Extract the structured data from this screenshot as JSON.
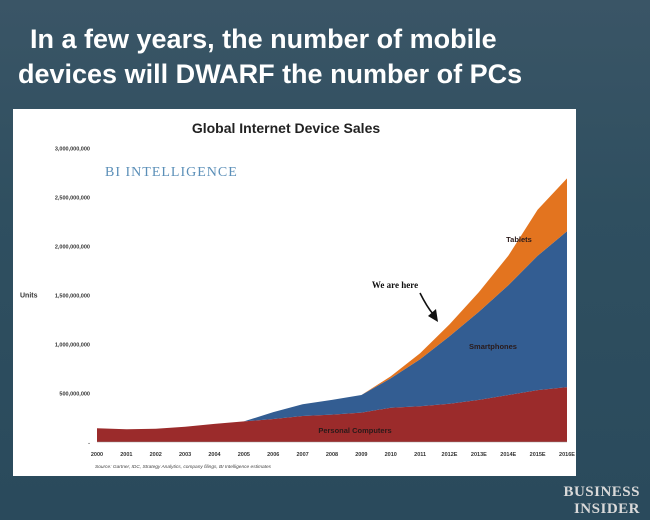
{
  "slide": {
    "headline_line1": "In a few years, the number of mobile",
    "headline_line2": "devices will DWARF the number of PCs",
    "brand_line1": "BUSINESS",
    "brand_line2": "INSIDER"
  },
  "chart_data": {
    "type": "area",
    "stacked": true,
    "title": "Global Internet Device Sales",
    "watermark": "BI INTELLIGENCE",
    "ylabel": "Units",
    "xlabel": "",
    "source": "Source: Gartner, IDC, Strategy Analytics, company filings, BI Intelligence estimates",
    "annotation": "We are here",
    "ylim": [
      0,
      3000000000
    ],
    "y_ticks": [
      0,
      500000000,
      1000000000,
      1500000000,
      2000000000,
      2500000000,
      3000000000
    ],
    "y_tick_labels": [
      "-",
      "500,000,000",
      "1,000,000,000",
      "1,500,000,000",
      "2,000,000,000",
      "2,500,000,000",
      "3,000,000,000"
    ],
    "categories": [
      "2000",
      "2001",
      "2002",
      "2003",
      "2004",
      "2005",
      "2006",
      "2007",
      "2008",
      "2009",
      "2010",
      "2011",
      "2012E",
      "2013E",
      "2014E",
      "2015E",
      "2016E"
    ],
    "series": [
      {
        "name": "Personal Computers",
        "color": "#9b2b2b",
        "values": [
          140000000,
          130000000,
          135000000,
          155000000,
          185000000,
          210000000,
          235000000,
          265000000,
          280000000,
          300000000,
          350000000,
          365000000,
          390000000,
          430000000,
          480000000,
          530000000,
          560000000
        ]
      },
      {
        "name": "Smartphones",
        "color": "#335d92",
        "values": [
          0,
          0,
          0,
          0,
          0,
          0,
          70000000,
          120000000,
          150000000,
          180000000,
          300000000,
          480000000,
          690000000,
          900000000,
          1120000000,
          1370000000,
          1590000000
        ]
      },
      {
        "name": "Tablets",
        "color": "#e3741f",
        "values": [
          0,
          0,
          0,
          0,
          0,
          0,
          0,
          0,
          0,
          0,
          20000000,
          60000000,
          120000000,
          200000000,
          300000000,
          470000000,
          540000000
        ]
      }
    ]
  }
}
